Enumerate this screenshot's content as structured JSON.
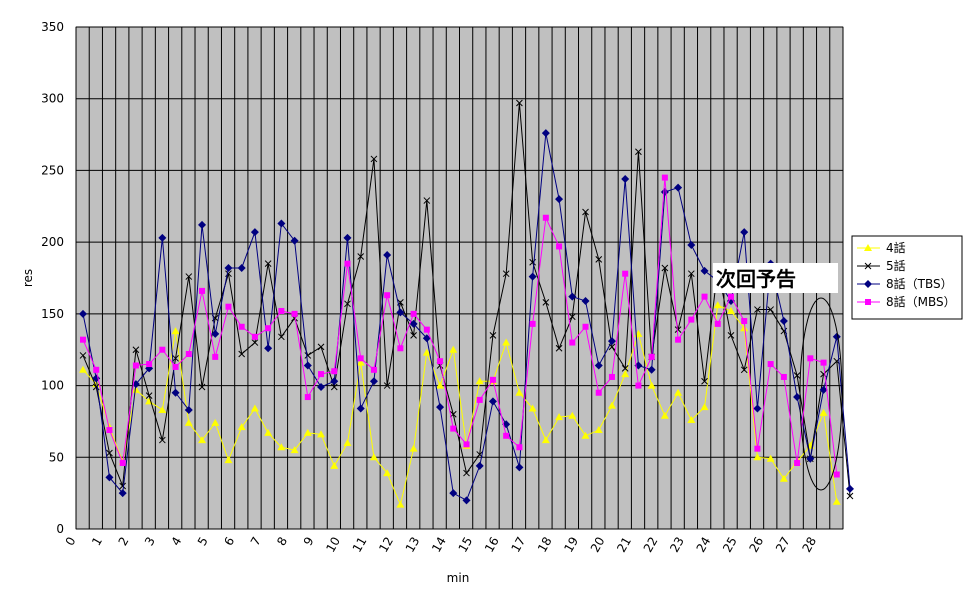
{
  "chart_data": {
    "type": "line",
    "xlabel": "min",
    "ylabel": "res",
    "ylim": [
      0,
      350
    ],
    "yticks": [
      0,
      50,
      100,
      150,
      200,
      250,
      300,
      350
    ],
    "xtick_labels": [
      "0",
      "1",
      "2",
      "3",
      "4",
      "5",
      "6",
      "7",
      "8",
      "9",
      "10",
      "11",
      "12",
      "13",
      "14",
      "15",
      "16",
      "17",
      "18",
      "19",
      "20",
      "21",
      "22",
      "23",
      "24",
      "25",
      "26",
      "27",
      "28"
    ],
    "grid": true,
    "legend_position": "right",
    "annotation": "次回予告",
    "colors": {
      "plot_bg": "#c0c0c0",
      "grid": "#000000"
    },
    "series": [
      {
        "name": "4話",
        "color": "#ffff00",
        "marker": "triangle",
        "values": [
          111,
          101,
          71,
          47,
          97,
          89,
          83,
          138,
          74,
          62,
          74,
          48,
          71,
          84,
          67,
          57,
          55,
          67,
          66,
          44,
          60,
          116,
          50,
          39,
          17,
          56,
          123,
          100,
          125,
          58,
          103,
          103,
          130,
          95,
          84,
          62,
          78,
          79,
          65,
          69,
          86,
          108,
          136,
          100,
          79,
          95,
          76,
          85,
          156,
          152,
          140,
          50,
          49,
          35,
          47,
          58,
          81,
          19
        ]
      },
      {
        "name": "5話",
        "color": "#000000",
        "marker": "x",
        "values": [
          121,
          99,
          53,
          30,
          125,
          93,
          62,
          119,
          176,
          99,
          147,
          178,
          122,
          130,
          185,
          134,
          147,
          121,
          127,
          99,
          157,
          190,
          258,
          100,
          158,
          135,
          229,
          114,
          80,
          39,
          52,
          135,
          178,
          297,
          186,
          158,
          126,
          148,
          221,
          188,
          127,
          112,
          263,
          120,
          182,
          139,
          178,
          103,
          182,
          135,
          111,
          153,
          153,
          138,
          107,
          49,
          108,
          117,
          23
        ]
      },
      {
        "name": "8話（TBS）",
        "color": "#000080",
        "marker": "diamond",
        "values": [
          150,
          105,
          36,
          25,
          101,
          112,
          203,
          95,
          83,
          212,
          136,
          182,
          182,
          207,
          126,
          213,
          201,
          114,
          99,
          103,
          203,
          84,
          103,
          191,
          151,
          143,
          133,
          85,
          25,
          20,
          44,
          89,
          73,
          43,
          176,
          276,
          230,
          162,
          159,
          114,
          131,
          244,
          114,
          111,
          235,
          238,
          198,
          180,
          173,
          159,
          207,
          84,
          185,
          145,
          92,
          49,
          97,
          134,
          28
        ]
      },
      {
        "name": "8話（MBS）",
        "color": "#ff00ff",
        "marker": "square",
        "values": [
          132,
          111,
          69,
          46,
          114,
          115,
          125,
          113,
          122,
          166,
          120,
          155,
          141,
          134,
          140,
          152,
          150,
          92,
          108,
          110,
          185,
          119,
          111,
          163,
          126,
          150,
          139,
          117,
          70,
          59,
          90,
          104,
          65,
          57,
          143,
          217,
          197,
          130,
          141,
          95,
          106,
          178,
          100,
          120,
          245,
          132,
          146,
          162,
          143,
          162,
          145,
          56,
          115,
          106,
          46,
          119,
          116,
          38
        ]
      }
    ]
  }
}
